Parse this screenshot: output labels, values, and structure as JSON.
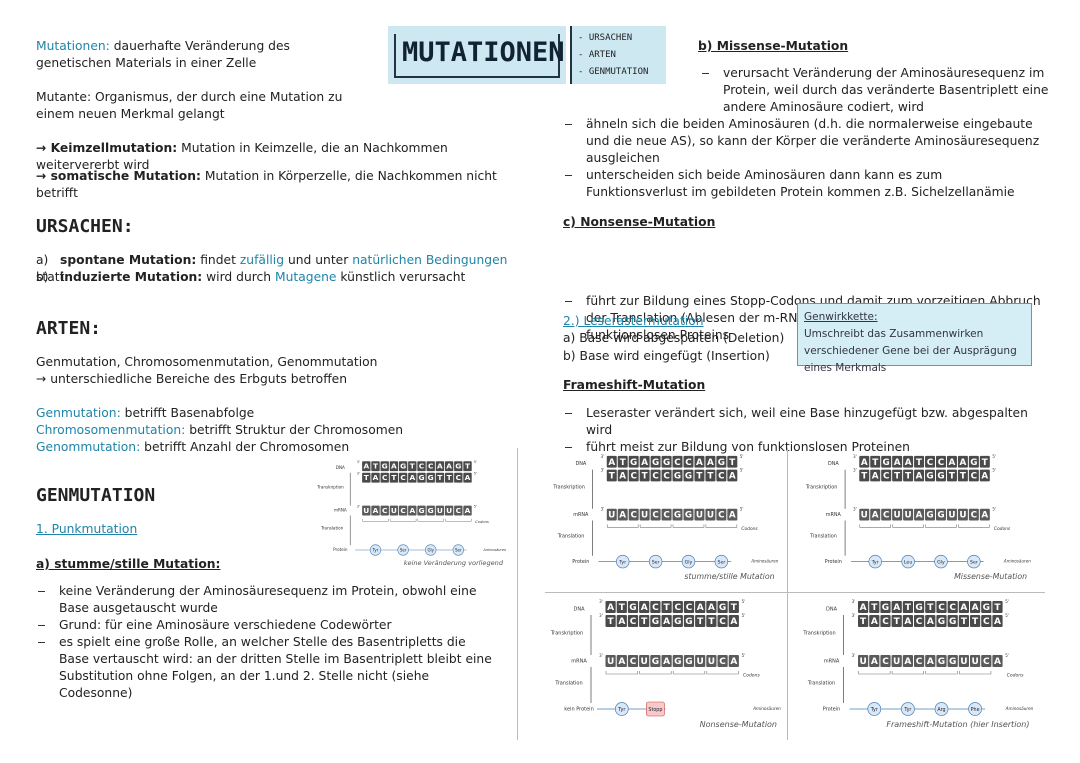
{
  "header": {
    "title": "MUTATIONEN",
    "topics": [
      "- URSACHEN",
      "- ARTEN",
      "- GENMUTATION"
    ]
  },
  "intro": {
    "def1_term": "Mutationen:",
    "def1_text": "dauerhafte Veränderung des genetischen Materials in einer Zelle",
    "def2": "Mutante: Organismus, der durch eine Mutation zu einem neuen Merkmal gelangt",
    "keim_term": "→ Keimzellmutation:",
    "keim_text": "Mutation in Keimzelle, die an Nachkommen weitervererbt wird",
    "som_term": "→ somatische Mutation:",
    "som_text": "Mutation in Körperzelle, die Nachkommen nicht betrifft"
  },
  "ursachen": {
    "heading": "URSACHEN:",
    "items": [
      {
        "marker": "a)",
        "term": "spontane Mutation:",
        "parts": [
          "findet",
          "zufällig",
          "und unter",
          "natürlichen Bedingungen",
          "statt"
        ]
      },
      {
        "marker": "b)",
        "term": "induzierte Mutation:",
        "parts": [
          "wird durch",
          "Mutagene",
          "künstlich verursacht"
        ]
      }
    ]
  },
  "arten": {
    "heading": "ARTEN:",
    "line1": "Genmutation, Chromosomenmutation, Genommutation",
    "line2": "→ unterschiedliche Bereiche des Erbguts betroffen",
    "defs": [
      [
        "Genmutation:",
        "betrifft Basenabfolge"
      ],
      [
        "Chromosomenmutation:",
        "betrifft Struktur der Chromosomen"
      ],
      [
        "Genommutation:",
        "betrifft Anzahl der Chromosomen"
      ]
    ]
  },
  "genmutation": {
    "heading": "GENMUTATION",
    "sub": "1. Punkmutation",
    "a_heading": "a) stumme/stille Mutation:",
    "a_bullets": [
      "keine Veränderung der Aminosäuresequenz im Protein, obwohl eine Base ausgetauscht wurde",
      "Grund: für eine Aminosäure verschiedene Codewörter",
      "es spielt eine große Rolle, an welcher Stelle des Basentripletts die Base vertauscht wird: an der dritten Stelle im Basentriplett bleibt eine Substitution ohne Folgen, an der 1.und 2. Stelle nicht (siehe Codesonne)"
    ]
  },
  "missense": {
    "heading": "b) Missense-Mutation",
    "bullets": [
      "verursacht Veränderung der Aminosäuresequenz im Protein, weil durch das veränderte Basentriplett eine andere Aminosäure codiert, wird",
      "ähneln sich die beiden Aminosäuren (d.h. die normalerweise eingebaute und die neue AS), so kann der Körper die veränderte Aminosäuresequenz ausgleichen",
      "unterscheiden sich beide Aminosäuren dann kann es zum Funktionsverlust im gebildeten Protein kommen z.B. Sichelzellanämie"
    ]
  },
  "nonsense": {
    "heading": "c) Nonsense-Mutation",
    "bullets": [
      "führt zur Bildung eines Stopp-Codons und damit zum vorzeitigen Abbruch der Translation (Ablesen der m-RNA) und damit zur Bildung eines funktionslosen Proteins"
    ]
  },
  "raster": {
    "heading": "2.) Leserastermutation",
    "lines": [
      "a) Base wird abgespalten (Deletion)",
      "b) Base wird eingefügt (Insertion)"
    ]
  },
  "note": {
    "title": "Genwirkkette:",
    "text": "Umschreibt das Zusammenwirken verschiedener Gene bei der Ausprägung eines Merkmals"
  },
  "frameshift": {
    "heading": "Frameshift-Mutation",
    "bullets": [
      "Leseraster verändert sich, weil eine Base hinzugefügt bzw. abgespalten wird",
      "führt meist zur Bildung von funktionslosen Proteinen"
    ]
  },
  "diagram_labels": {
    "dna": "DNA",
    "transcription": "Transkription",
    "mrna": "mRNA",
    "translation": "Translation",
    "protein": "Protein",
    "codons": "Codons",
    "amino": "Aminosäuren",
    "three": "3'",
    "five": "5'"
  },
  "diagrams": [
    {
      "dna_top": "ATGAGTCCAAGT",
      "dna_bottom": "TACTCAGGTTCA",
      "mrna": "UACUCAGGUUCA",
      "amino_acids": [
        "Tyr",
        "Ser",
        "Gly",
        "Ser"
      ],
      "caption": "keine Veränderung vorliegend"
    },
    {
      "dna_top": "ATGAGGCCAAGT",
      "dna_bottom": "TACTCCGGTTCA",
      "mrna": "UACUCCGGUUCA",
      "amino_acids": [
        "Tyr",
        "Ser",
        "Gly",
        "Ser"
      ],
      "caption": "stumme/stille Mutation"
    },
    {
      "dna_top": "ATGAATCCAAGT",
      "dna_bottom": "TACTTAGGTTCA",
      "mrna": "UACUUAGGUUCA",
      "amino_acids": [
        "Tyr",
        "Leu",
        "Gly",
        "Ser"
      ],
      "caption": "Missense-Mutation"
    },
    {
      "dna_top": "ATGACTCCAAGT",
      "dna_bottom": "TACTGAGGTTCA",
      "mrna": "UACUGAGGUUCA",
      "amino_acids": [
        "Tyr",
        "Stopp"
      ],
      "protein_label": "kein Protein",
      "caption": "Nonsense-Mutation"
    },
    {
      "dna_top": "ATGATGTCCAAGT",
      "dna_bottom": "TACTACAGGTTCA",
      "mrna": "UACUACAGGUUCA",
      "amino_acids": [
        "Tyr",
        "Tyr",
        "Arg",
        "Phe"
      ],
      "caption": "Frameshift-Mutation (hier Insertion)"
    }
  ]
}
